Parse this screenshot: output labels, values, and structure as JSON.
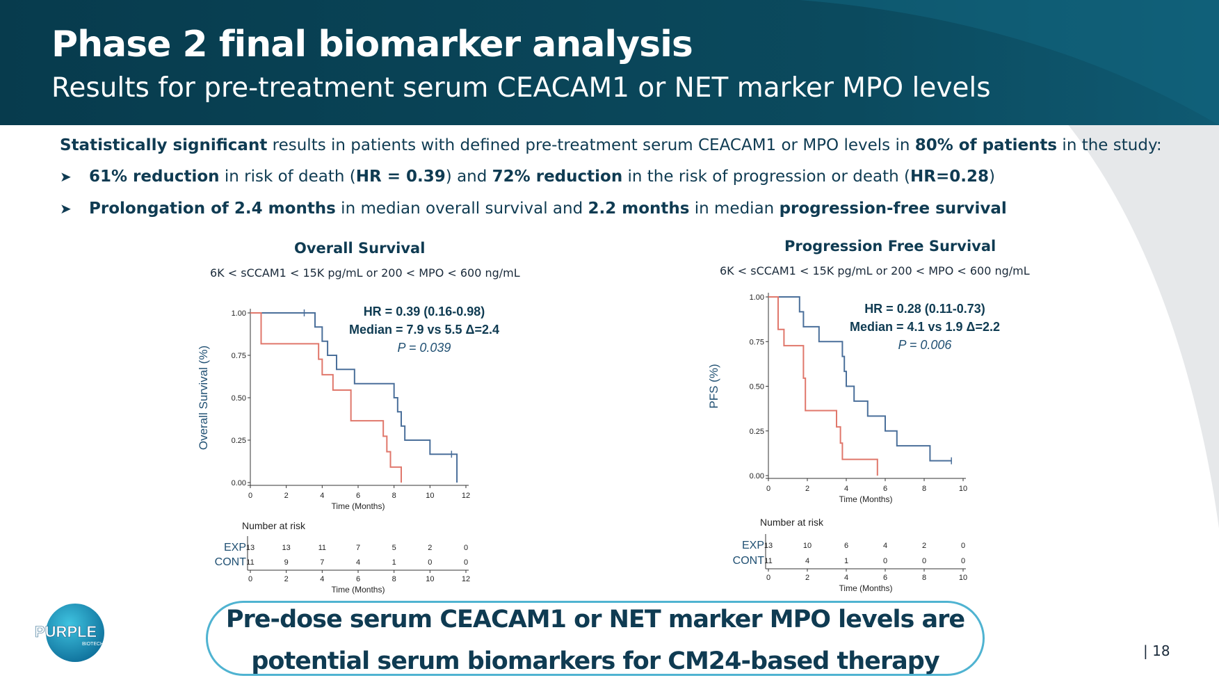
{
  "header": {
    "title": "Phase 2 final biomarker analysis",
    "subtitle": "Results for pre-treatment serum CEACAM1 or NET marker MPO levels"
  },
  "intro": {
    "bold1": "Statistically significant",
    "text1": " results in patients with defined pre-treatment serum CEACAM1 or MPO levels in ",
    "bold2": "80% of patients",
    "text2": " in the study:"
  },
  "bullets": [
    {
      "b1": "61% reduction",
      "t1": " in risk of death (",
      "b2": "HR = 0.39",
      "t2": ") and ",
      "b3": "72% reduction",
      "t3": " in the risk of progression or death (",
      "b4": "HR=0.28",
      "t4": ")"
    },
    {
      "b1": "Prolongation of 2.4 months",
      "t1": " in median overall survival and ",
      "b2": "2.2 months",
      "t2": " in median ",
      "b3": "progression-free survival"
    }
  ],
  "chart_data": [
    {
      "type": "line",
      "title": "Overall Survival",
      "subtitle": "6K < sCCAM1 < 15K pg/mL or 200 < MPO < 600 ng/mL",
      "xlabel": "Time (Months)",
      "ylabel": "Overall Survival (%)",
      "xlim": [
        0,
        12
      ],
      "ylim": [
        0,
        1
      ],
      "xticks": [
        "0",
        "2",
        "4",
        "6",
        "8",
        "10",
        "12"
      ],
      "yticks": [
        "0.00",
        "0.25",
        "0.50",
        "0.75",
        "1.00"
      ],
      "annotation": {
        "hr": "HR = 0.39 (0.16-0.98)",
        "median": "Median = 7.9 vs 5.5 Δ=2.4",
        "p": "P = 0.039"
      },
      "series": [
        {
          "name": "EXP",
          "color": "#4a6f9a",
          "steps": [
            [
              0,
              1.0
            ],
            [
              3.6,
              0.917
            ],
            [
              4.0,
              0.833
            ],
            [
              4.3,
              0.75
            ],
            [
              4.8,
              0.667
            ],
            [
              5.8,
              0.583
            ],
            [
              8.0,
              0.5
            ],
            [
              8.2,
              0.417
            ],
            [
              8.4,
              0.333
            ],
            [
              8.6,
              0.25
            ],
            [
              10.0,
              0.167
            ],
            [
              11.5,
              0.0
            ]
          ],
          "censor": [
            [
              3.0,
              1.0
            ],
            [
              11.2,
              0.167
            ]
          ]
        },
        {
          "name": "CONT",
          "color": "#e0776b",
          "steps": [
            [
              0,
              1.0
            ],
            [
              0.6,
              0.818
            ],
            [
              3.8,
              0.727
            ],
            [
              4.0,
              0.636
            ],
            [
              4.6,
              0.545
            ],
            [
              5.6,
              0.364
            ],
            [
              7.4,
              0.273
            ],
            [
              7.6,
              0.182
            ],
            [
              7.8,
              0.091
            ],
            [
              8.4,
              0.0
            ]
          ],
          "censor": []
        }
      ],
      "risk_table": {
        "title": "Number at risk",
        "times": [
          "0",
          "2",
          "4",
          "6",
          "8",
          "10",
          "12"
        ],
        "rows": [
          {
            "label": "EXP",
            "values": [
              "13",
              "13",
              "11",
              "7",
              "5",
              "2",
              "0"
            ]
          },
          {
            "label": "CONT",
            "values": [
              "11",
              "9",
              "7",
              "4",
              "1",
              "0",
              "0"
            ]
          }
        ],
        "xlabel": "Time (Months)"
      }
    },
    {
      "type": "line",
      "title": "Progression Free Survival",
      "subtitle": "6K < sCCAM1 < 15K pg/mL or 200 < MPO < 600 ng/mL",
      "xlabel": "Time (Months)",
      "ylabel": "PFS (%)",
      "xlim": [
        0,
        10
      ],
      "ylim": [
        0,
        1
      ],
      "xticks": [
        "0",
        "2",
        "4",
        "6",
        "8",
        "10"
      ],
      "yticks": [
        "0.00",
        "0.25",
        "0.50",
        "0.75",
        "1.00"
      ],
      "annotation": {
        "hr": "HR = 0.28 (0.11-0.73)",
        "median": "Median = 4.1 vs 1.9 Δ=2.2",
        "p": "P = 0.006"
      },
      "series": [
        {
          "name": "EXP",
          "color": "#4a6f9a",
          "steps": [
            [
              0,
              1.0
            ],
            [
              1.6,
              0.917
            ],
            [
              1.8,
              0.833
            ],
            [
              2.6,
              0.75
            ],
            [
              3.8,
              0.667
            ],
            [
              3.9,
              0.583
            ],
            [
              4.0,
              0.5
            ],
            [
              4.4,
              0.417
            ],
            [
              5.1,
              0.333
            ],
            [
              6.0,
              0.25
            ],
            [
              6.6,
              0.167
            ],
            [
              8.3,
              0.083
            ],
            [
              9.4,
              0.083
            ]
          ],
          "censor": [
            [
              9.4,
              0.083
            ]
          ]
        },
        {
          "name": "CONT",
          "color": "#e0776b",
          "steps": [
            [
              0,
              1.0
            ],
            [
              0.5,
              0.818
            ],
            [
              0.8,
              0.727
            ],
            [
              1.8,
              0.545
            ],
            [
              1.9,
              0.364
            ],
            [
              3.5,
              0.273
            ],
            [
              3.7,
              0.182
            ],
            [
              3.8,
              0.091
            ],
            [
              5.6,
              0.0
            ]
          ],
          "censor": []
        }
      ],
      "risk_table": {
        "title": "Number at risk",
        "times": [
          "0",
          "2",
          "4",
          "6",
          "8",
          "10"
        ],
        "rows": [
          {
            "label": "EXP",
            "values": [
              "13",
              "10",
              "6",
              "4",
              "2",
              "0"
            ]
          },
          {
            "label": "CONT",
            "values": [
              "11",
              "4",
              "1",
              "0",
              "0",
              "0"
            ]
          }
        ],
        "xlabel": "Time (Months)"
      }
    }
  ],
  "conclusion": {
    "line1": "Pre-dose serum CEACAM1 or NET marker MPO levels are",
    "line2": "potential serum biomarkers for CM24-based therapy"
  },
  "logo": {
    "text": "PURPLE",
    "subtext": "BIOTECH"
  },
  "page_number": "| 18",
  "colors": {
    "header": "#0b4a5e",
    "header_dark": "#0a3a4d",
    "accent": "#4fb3d1",
    "text": "#0f3b52"
  }
}
